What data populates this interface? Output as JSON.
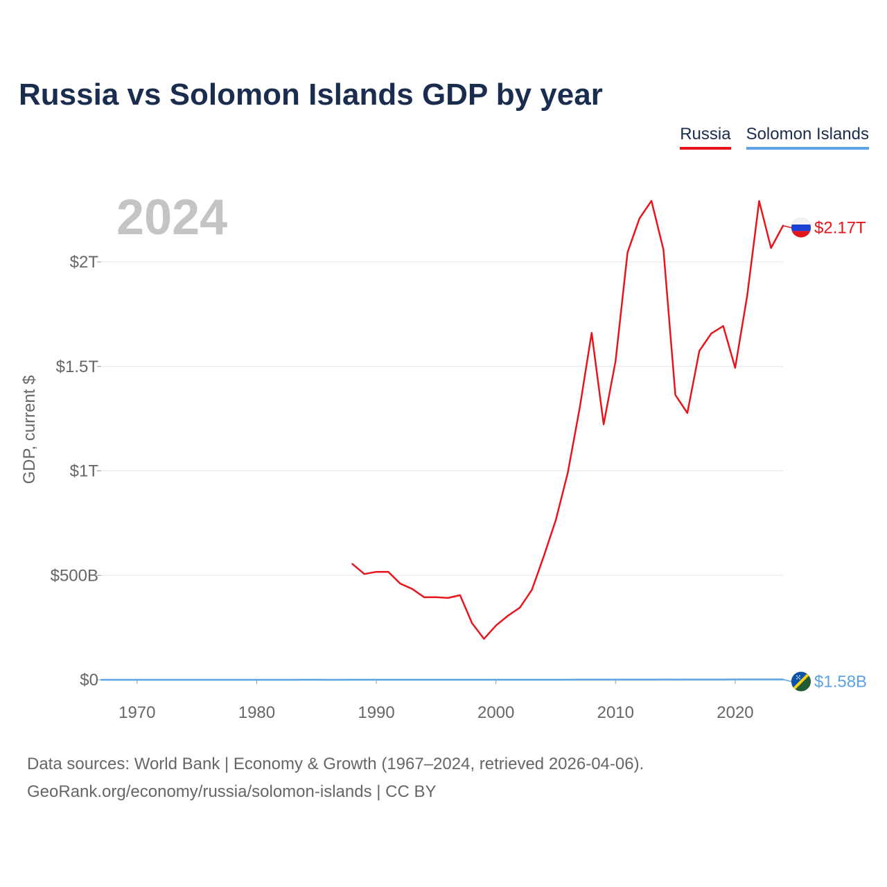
{
  "title": "Russia vs Solomon Islands GDP by year",
  "legend": [
    {
      "label": "Russia",
      "color": "#e8141b"
    },
    {
      "label": "Solomon Islands",
      "color": "#5ba3e6"
    }
  ],
  "chart_data": {
    "type": "line",
    "title": "Russia vs Solomon Islands GDP by year",
    "year_label": "2024",
    "ylabel": "GDP, current $",
    "xlabel": "",
    "xlim": [
      1967,
      2024
    ],
    "ylim": [
      0,
      2000000000000
    ],
    "xticks": [
      1970,
      1980,
      1990,
      2000,
      2010,
      2020
    ],
    "yticks": [
      {
        "value": 0,
        "label": "$0"
      },
      {
        "value": 500000000000,
        "label": "$500B"
      },
      {
        "value": 1000000000000,
        "label": "$1T"
      },
      {
        "value": 1500000000000,
        "label": "$1.5T"
      },
      {
        "value": 2000000000000,
        "label": "$2T"
      }
    ],
    "grid": true,
    "series": [
      {
        "name": "Russia",
        "color": "#e8141b",
        "end_label": "$2.17T",
        "x": [
          1988,
          1989,
          1990,
          1991,
          1992,
          1993,
          1994,
          1995,
          1996,
          1997,
          1998,
          1999,
          2000,
          2001,
          2002,
          2003,
          2004,
          2005,
          2006,
          2007,
          2008,
          2009,
          2010,
          2011,
          2012,
          2013,
          2014,
          2015,
          2016,
          2017,
          2018,
          2019,
          2020,
          2021,
          2022,
          2023,
          2024
        ],
        "values": [
          554700000000,
          506500000000,
          516800000000,
          517000000000,
          460300000000,
          435100000000,
          395100000000,
          395500000000,
          391700000000,
          405000000000,
          271000000000,
          195900000000,
          259700000000,
          306600000000,
          345500000000,
          430300000000,
          591000000000,
          764000000000,
          989900000000,
          1299700000000,
          1660800000000,
          1222600000000,
          1524900000000,
          2045900000000,
          2208300000000,
          2292500000000,
          2059200000000,
          1363500000000,
          1276800000000,
          1574200000000,
          1657300000000,
          1693100000000,
          1493100000000,
          1836900000000,
          2291600000000,
          2066600000000,
          2173800000000
        ]
      },
      {
        "name": "Solomon Islands",
        "color": "#5ba3e6",
        "end_label": "$1.58B",
        "x": [
          1967,
          1968,
          1969,
          1970,
          1971,
          1972,
          1973,
          1974,
          1975,
          1976,
          1977,
          1978,
          1979,
          1980,
          1981,
          1982,
          1983,
          1984,
          1985,
          1986,
          1987,
          1988,
          1989,
          1990,
          1991,
          1992,
          1993,
          1994,
          1995,
          1996,
          1997,
          1998,
          1999,
          2000,
          2001,
          2002,
          2003,
          2004,
          2005,
          2006,
          2007,
          2008,
          2009,
          2010,
          2011,
          2012,
          2013,
          2014,
          2015,
          2016,
          2017,
          2018,
          2019,
          2020,
          2021,
          2022,
          2023,
          2024
        ],
        "values": [
          26000000,
          28000000,
          30000000,
          32000000,
          35000000,
          40000000,
          45000000,
          60000000,
          60000000,
          65000000,
          80000000,
          100000000,
          120000000,
          130000000,
          150000000,
          160000000,
          150000000,
          190000000,
          170000000,
          140000000,
          150000000,
          180000000,
          190000000,
          210000000,
          240000000,
          270000000,
          310000000,
          360000000,
          420000000,
          470000000,
          490000000,
          430000000,
          450000000,
          440000000,
          400000000,
          340000000,
          340000000,
          380000000,
          420000000,
          460000000,
          540000000,
          610000000,
          600000000,
          700000000,
          910000000,
          1070000000,
          1140000000,
          1180000000,
          1160000000,
          1210000000,
          1320000000,
          1430000000,
          1450000000,
          1550000000,
          1630000000,
          1600000000,
          1540000000,
          1580000000
        ]
      }
    ]
  },
  "source_line": "Data sources: World Bank | Economy & Growth (1967–2024, retrieved 2026-04-06).",
  "credit_line": "GeoRank.org/economy/russia/solomon-islands | CC BY"
}
